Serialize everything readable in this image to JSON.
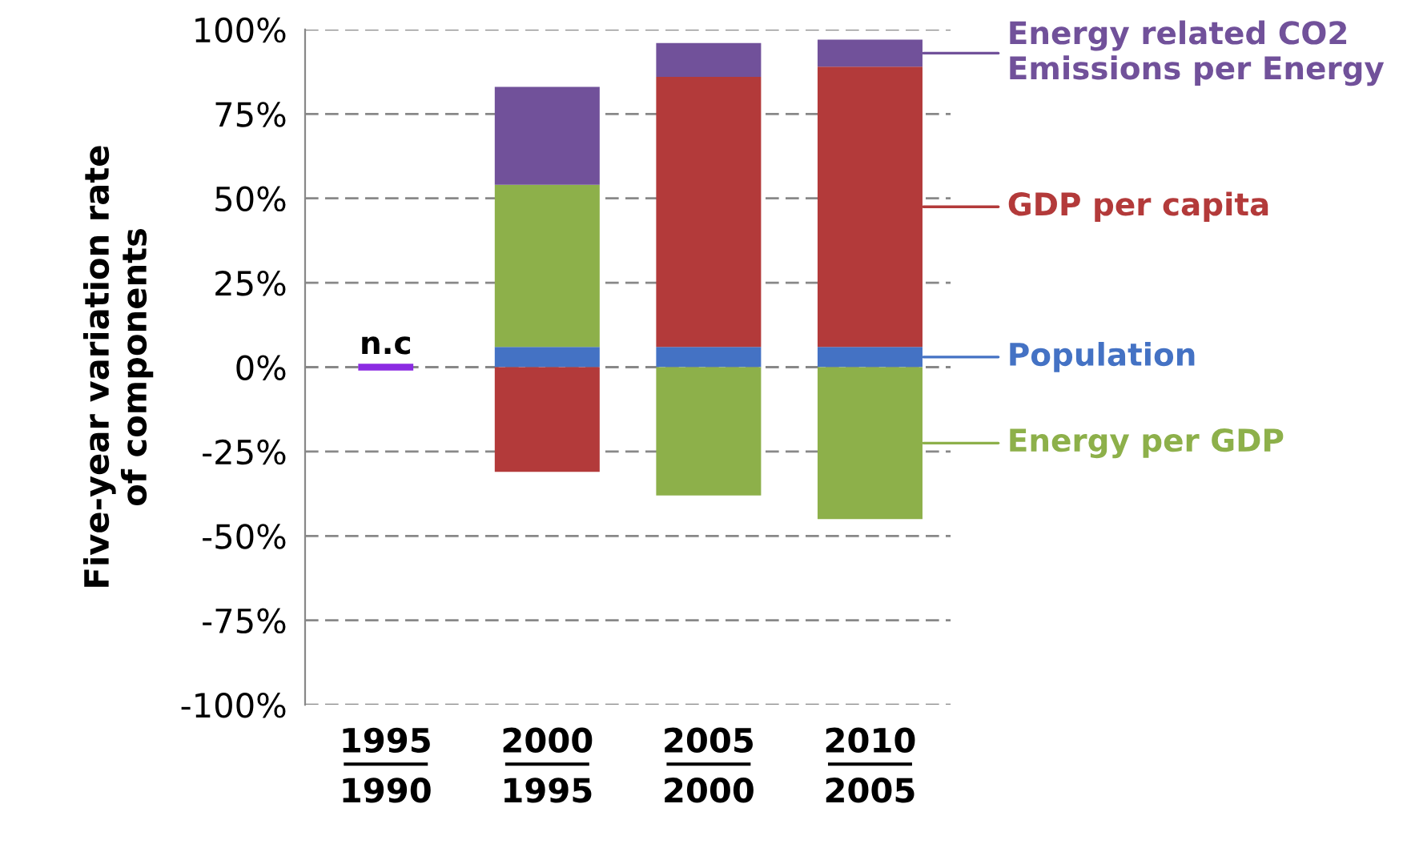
{
  "chart_data": {
    "type": "bar",
    "stacked": true,
    "ylabel": "Five-year variation rate\nof components",
    "categories": [
      "1995\n1990",
      "2000\n1995",
      "2005\n2000",
      "2010\n2005"
    ],
    "series": [
      {
        "name": "Population",
        "color": "#4472c4",
        "values": [
          null,
          6,
          6,
          6
        ]
      },
      {
        "name": "GDP per capita",
        "color": "#b33a3a",
        "values": [
          null,
          -31,
          80,
          83
        ]
      },
      {
        "name": "Energy per GDP",
        "color": "#8db04a",
        "values": [
          null,
          48,
          -38,
          -45
        ]
      },
      {
        "name": "Energy related CO2\nEmissions per Energy",
        "color": "#71519a",
        "values": [
          null,
          29,
          10,
          8
        ]
      }
    ],
    "ylim": [
      -100,
      100
    ],
    "yticks": [
      {
        "value": -100,
        "label": "-100%"
      },
      {
        "value": -75,
        "label": "-75%"
      },
      {
        "value": -50,
        "label": "-50%"
      },
      {
        "value": -25,
        "label": "-25%"
      },
      {
        "value": 0,
        "label": "0%"
      },
      {
        "value": 25,
        "label": "25%"
      },
      {
        "value": 50,
        "label": "50%"
      },
      {
        "value": 75,
        "label": "75%"
      },
      {
        "value": 100,
        "label": "100%"
      }
    ],
    "grid": "y",
    "legend": "right",
    "annotations": [
      "n.c"
    ]
  }
}
